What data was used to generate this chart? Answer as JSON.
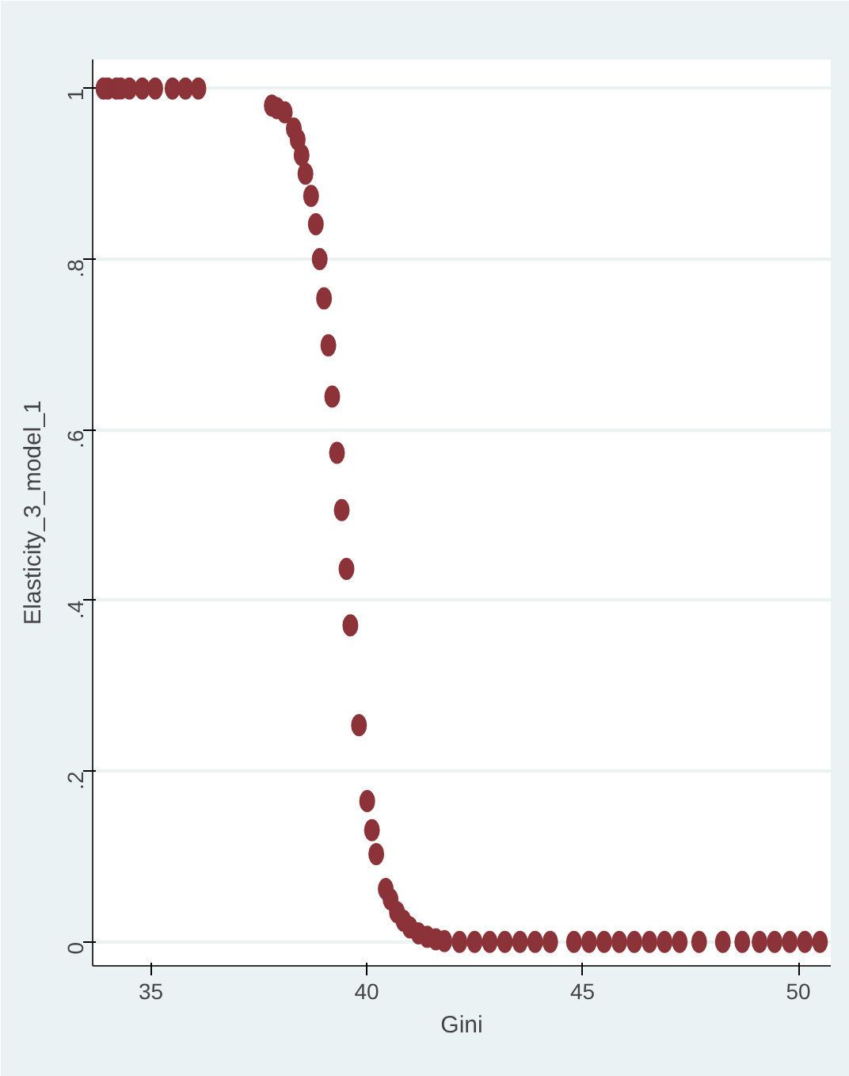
{
  "chart_data": {
    "type": "scatter",
    "xlabel": "Gini",
    "ylabel": "Elasticity_3_model_1",
    "marker": "circle",
    "grid": "y",
    "xlim": [
      33.65,
      50.75
    ],
    "ylim": [
      -0.028,
      1.034
    ],
    "xticks": [
      35,
      40,
      45,
      50
    ],
    "yticks": [
      {
        "value": 0,
        "label": "0"
      },
      {
        "value": 0.2,
        "label": ".2"
      },
      {
        "value": 0.4,
        "label": ".4"
      },
      {
        "value": 0.6,
        "label": ".6"
      },
      {
        "value": 0.8,
        "label": ".8"
      },
      {
        "value": 1,
        "label": "1"
      }
    ],
    "series": [
      {
        "color": "#8b3338",
        "x": [
          33.9,
          34.0,
          34.2,
          34.3,
          34.5,
          34.8,
          35.1,
          35.5,
          35.8,
          36.1,
          37.8,
          37.92,
          38.1,
          38.31,
          38.4,
          38.49,
          38.58,
          38.71,
          38.82,
          38.91,
          39.01,
          39.11,
          39.2,
          39.31,
          39.42,
          39.53,
          39.62,
          39.82,
          40.01,
          40.12,
          40.22,
          40.44,
          40.55,
          40.7,
          40.85,
          41.0,
          41.2,
          41.4,
          41.6,
          41.8,
          42.15,
          42.5,
          42.85,
          43.2,
          43.55,
          43.9,
          44.25,
          44.8,
          45.15,
          45.5,
          45.85,
          46.2,
          46.55,
          46.9,
          47.25,
          47.7,
          48.25,
          48.7,
          49.1,
          49.45,
          49.8,
          50.15,
          50.5
        ],
        "values": [
          1,
          1,
          1,
          1,
          1,
          1,
          1,
          1,
          1,
          1,
          0.98,
          0.977,
          0.972,
          0.953,
          0.94,
          0.922,
          0.9,
          0.874,
          0.841,
          0.8,
          0.754,
          0.699,
          0.639,
          0.573,
          0.506,
          0.437,
          0.371,
          0.254,
          0.165,
          0.131,
          0.103,
          0.062,
          0.05,
          0.035,
          0.025,
          0.017,
          0.01,
          0.006,
          0.003,
          0.001,
          0,
          0,
          0,
          0,
          0,
          0,
          0,
          0,
          0,
          0,
          0,
          0,
          0,
          0,
          0,
          0,
          0,
          0,
          0,
          0,
          0,
          0,
          0
        ]
      }
    ]
  }
}
